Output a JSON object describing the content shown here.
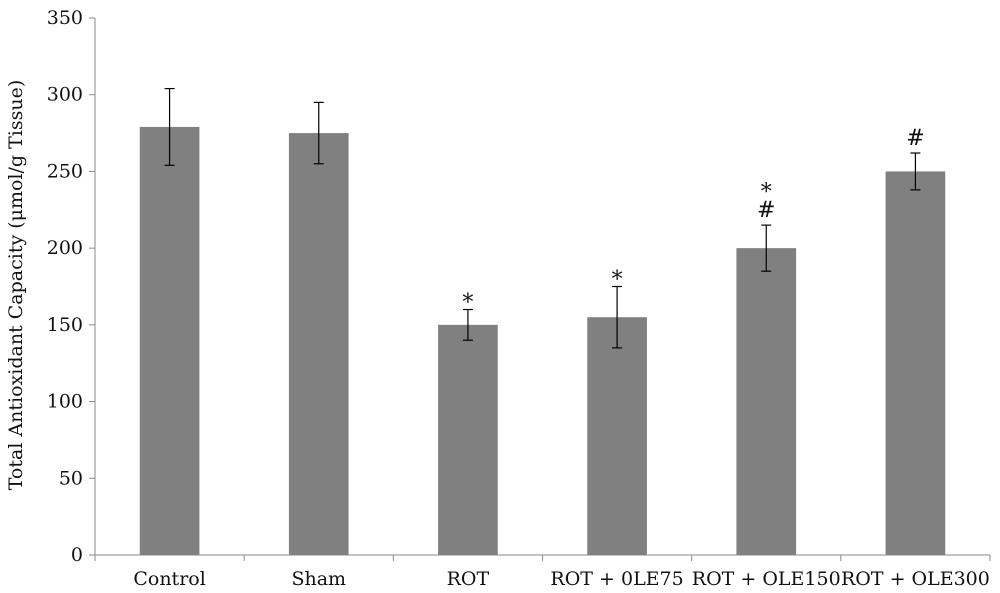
{
  "chart_data": {
    "type": "bar",
    "title": "",
    "xlabel": "",
    "ylabel": "Total Antioxidant Capacity (μmol/g Tissue)",
    "categories": [
      "Control",
      "Sham",
      "ROT",
      "ROT + 0LE75",
      "ROT + OLE150",
      "ROT + OLE300"
    ],
    "values": [
      279,
      275,
      150,
      155,
      200,
      250
    ],
    "error": [
      25,
      20,
      10,
      20,
      15,
      12
    ],
    "markers": [
      "",
      "",
      "*",
      "*",
      "*\n#",
      "#"
    ],
    "ylim": [
      0,
      350
    ],
    "yticks": [
      0,
      50,
      100,
      150,
      200,
      250,
      300,
      350
    ],
    "grid": false,
    "legend": "none",
    "bar_color": "#808080"
  }
}
